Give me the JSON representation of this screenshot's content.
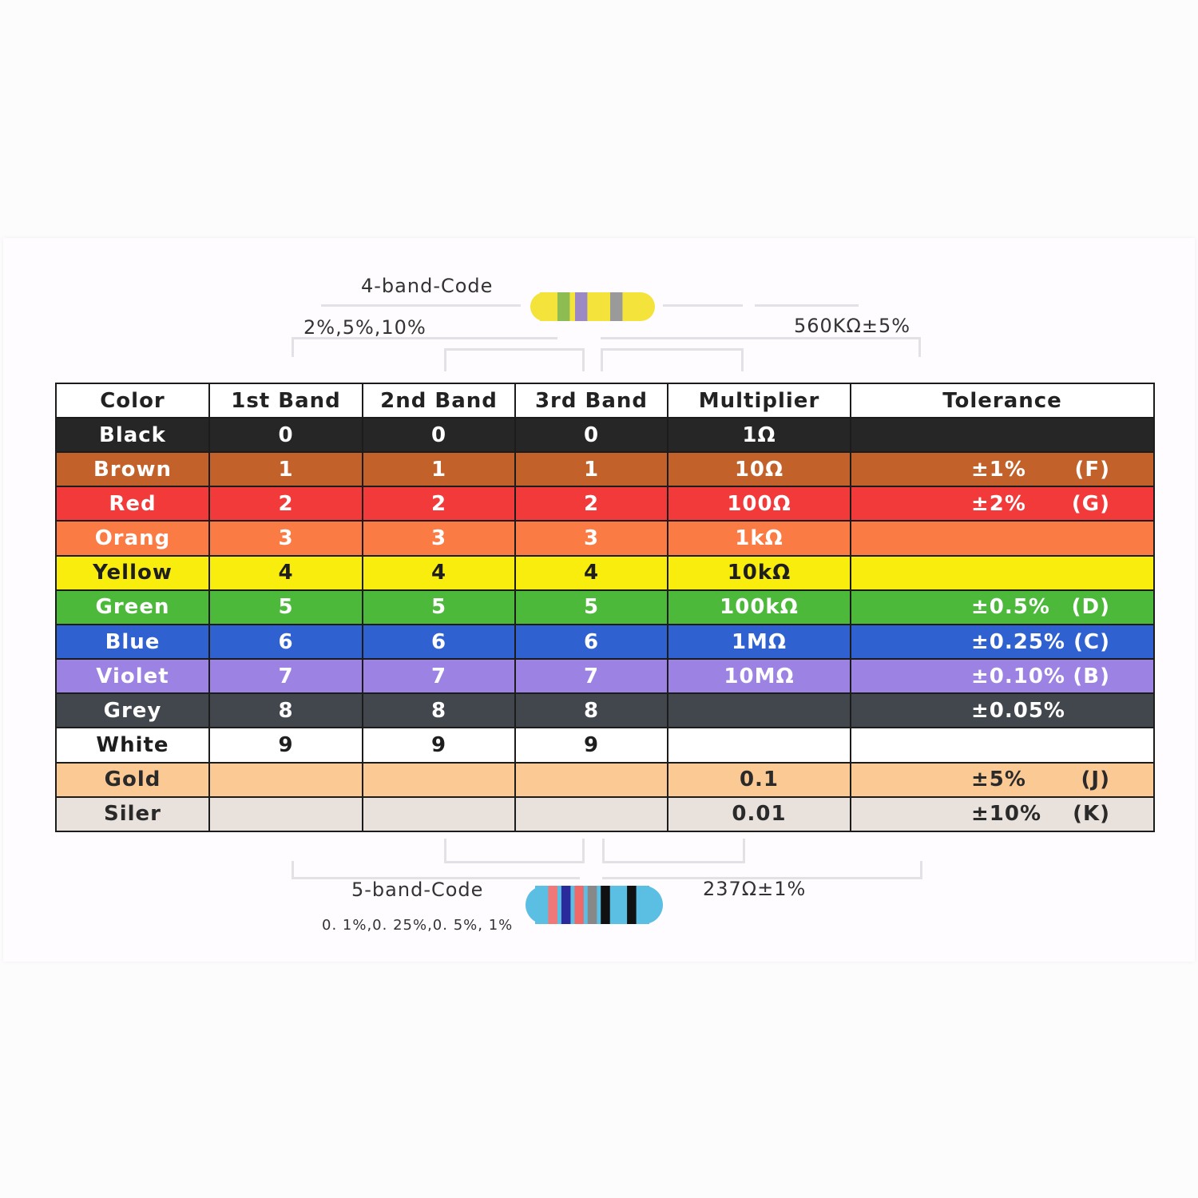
{
  "four_band": {
    "title": "4-band-Code",
    "tolerances": "2%,5%,10%",
    "example": "560KΩ±5%",
    "band_colors": [
      "#f4e33a",
      "#8dbd52",
      "#9c88c4",
      "#f4e33a",
      "#9a9a9a",
      "#f4e33a"
    ]
  },
  "five_band": {
    "title": "5-band-Code",
    "tolerances": "0. 1%,0. 25%,0. 5%, 1%",
    "example": "237Ω±1%",
    "band_colors": [
      "#5bbfe3",
      "#f07878",
      "#2a2a9c",
      "#ee6a6a",
      "#888888",
      "#111111",
      "#5bbfe3",
      "#111111",
      "#5bbfe3"
    ]
  },
  "table": {
    "headers": [
      "Color",
      "1st Band",
      "2nd Band",
      "3rd Band",
      "Multiplier",
      "Tolerance"
    ],
    "rows": [
      {
        "color": "Black",
        "bg": "#262626",
        "fg": "#ffffff",
        "b1": "0",
        "b2": "0",
        "b3": "0",
        "mult": "1Ω",
        "tol": "",
        "code": ""
      },
      {
        "color": "Brown",
        "bg": "#c2622a",
        "fg": "#ffffff",
        "b1": "1",
        "b2": "1",
        "b3": "1",
        "mult": "10Ω",
        "tol": "±1%",
        "code": "(F)"
      },
      {
        "color": "Red",
        "bg": "#f23a3a",
        "fg": "#ffffff",
        "b1": "2",
        "b2": "2",
        "b3": "2",
        "mult": "100Ω",
        "tol": "±2%",
        "code": "(G)"
      },
      {
        "color": "Orang",
        "bg": "#fb7b45",
        "fg": "#ffffff",
        "b1": "3",
        "b2": "3",
        "b3": "3",
        "mult": "1kΩ",
        "tol": "",
        "code": ""
      },
      {
        "color": "Yellow",
        "bg": "#f8ed0c",
        "fg": "#1e1e1e",
        "b1": "4",
        "b2": "4",
        "b3": "4",
        "mult": "10kΩ",
        "tol": "",
        "code": ""
      },
      {
        "color": "Green",
        "bg": "#4cb93a",
        "fg": "#ffffff",
        "b1": "5",
        "b2": "5",
        "b3": "5",
        "mult": "100kΩ",
        "tol": "±0.5%",
        "code": "(D)"
      },
      {
        "color": "Blue",
        "bg": "#2f62d0",
        "fg": "#ffffff",
        "b1": "6",
        "b2": "6",
        "b3": "6",
        "mult": "1MΩ",
        "tol": "±0.25%",
        "code": "(C)"
      },
      {
        "color": "Violet",
        "bg": "#9b82e3",
        "fg": "#ffffff",
        "b1": "7",
        "b2": "7",
        "b3": "7",
        "mult": "10MΩ",
        "tol": "±0.10%",
        "code": "(B)"
      },
      {
        "color": "Grey",
        "bg": "#41474d",
        "fg": "#ffffff",
        "b1": "8",
        "b2": "8",
        "b3": "8",
        "mult": "",
        "tol": "±0.05%",
        "code": ""
      },
      {
        "color": "White",
        "bg": "#ffffff",
        "fg": "#1e1e1e",
        "b1": "9",
        "b2": "9",
        "b3": "9",
        "mult": "",
        "tol": "",
        "code": ""
      },
      {
        "color": "Gold",
        "bg": "#fbc993",
        "fg": "#2a2a2a",
        "b1": "",
        "b2": "",
        "b3": "",
        "mult": "0.1",
        "tol": "±5%",
        "code": "(J)"
      },
      {
        "color": "Siler",
        "bg": "#e9e1dc",
        "fg": "#2a2a2a",
        "b1": "",
        "b2": "",
        "b3": "",
        "mult": "0.01",
        "tol": "±10%",
        "code": "(K)"
      }
    ]
  }
}
